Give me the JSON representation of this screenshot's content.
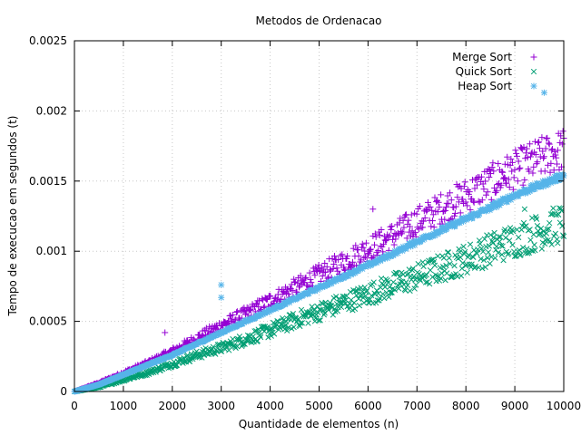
{
  "chart_data": {
    "type": "scatter",
    "title": "Metodos de Ordenacao",
    "xlabel": "Quantidade de elementos (n)",
    "ylabel": "Tempo de execucao em segundos (t)",
    "xlim": [
      0,
      10000
    ],
    "ylim": [
      0,
      0.0025
    ],
    "xticks": [
      0,
      1000,
      2000,
      3000,
      4000,
      5000,
      6000,
      7000,
      8000,
      9000,
      10000
    ],
    "xtick_labels": [
      "0",
      "1000",
      "2000",
      "3000",
      "4000",
      "5000",
      "6000",
      "7000",
      "8000",
      "9000",
      "10000"
    ],
    "yticks": [
      0,
      0.0005,
      0.001,
      0.0015,
      0.002,
      0.0025
    ],
    "ytick_labels": [
      "0",
      "0.0005",
      "0.001",
      "0.0015",
      "0.002",
      "0.0025"
    ],
    "grid": true,
    "legend_position": "top-right",
    "series": [
      {
        "name": "Merge Sort",
        "marker": "plus",
        "color": "#9400d3",
        "x": [
          0,
          500,
          1000,
          1500,
          2000,
          2500,
          3000,
          3500,
          4000,
          4500,
          5000,
          5500,
          6000,
          6500,
          7000,
          7500,
          8000,
          8500,
          9000,
          9500,
          10000
        ],
        "y": [
          0,
          6e-05,
          0.00013,
          0.0002,
          0.00028,
          0.00037,
          0.00046,
          0.00054,
          0.00063,
          0.00072,
          0.00081,
          0.0009,
          0.00099,
          0.00108,
          0.00118,
          0.00127,
          0.00136,
          0.00145,
          0.00154,
          0.00162,
          0.00168
        ],
        "outliers": [
          {
            "x": 1850,
            "y": 0.00042
          },
          {
            "x": 6100,
            "y": 0.0013
          },
          {
            "x": 8800,
            "y": 0.00162
          }
        ]
      },
      {
        "name": "Quick Sort",
        "marker": "cross",
        "color": "#009e73",
        "x": [
          0,
          500,
          1000,
          1500,
          2000,
          2500,
          3000,
          3500,
          4000,
          4500,
          5000,
          5500,
          6000,
          6500,
          7000,
          7500,
          8000,
          8500,
          9000,
          9500,
          10000
        ],
        "y": [
          0,
          3e-05,
          8e-05,
          0.00013,
          0.00019,
          0.00025,
          0.0003,
          0.00036,
          0.00042,
          0.00049,
          0.00055,
          0.00061,
          0.00067,
          0.00073,
          0.00079,
          0.00085,
          0.00091,
          0.00098,
          0.00104,
          0.0011,
          0.00116
        ],
        "outliers": [
          {
            "x": 9200,
            "y": 0.0013
          }
        ]
      },
      {
        "name": "Heap Sort",
        "marker": "star",
        "color": "#56b4e9",
        "x": [
          0,
          500,
          1000,
          1500,
          2000,
          2500,
          3000,
          3500,
          4000,
          4500,
          5000,
          5500,
          6000,
          6500,
          7000,
          7500,
          8000,
          8500,
          9000,
          9500,
          10000
        ],
        "y": [
          0,
          5e-05,
          0.00012,
          0.00019,
          0.00026,
          0.00034,
          0.00042,
          0.0005,
          0.00058,
          0.00066,
          0.00074,
          0.00082,
          0.0009,
          0.00098,
          0.00107,
          0.00115,
          0.00123,
          0.00131,
          0.0014,
          0.00147,
          0.00154
        ],
        "outliers": [
          {
            "x": 3000,
            "y": 0.00076
          },
          {
            "x": 3000,
            "y": 0.00067
          },
          {
            "x": 9600,
            "y": 0.00213
          }
        ]
      }
    ]
  }
}
